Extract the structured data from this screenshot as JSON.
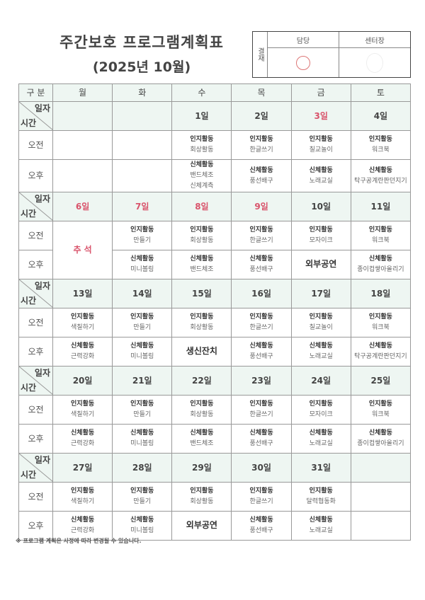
{
  "title": "주간보호 프로그램계획표",
  "subtitle": "(2025년 10월)",
  "approval": {
    "label": "결재",
    "col1": "담당",
    "col2": "센터장"
  },
  "header": {
    "first": "구 분",
    "days": [
      "월",
      "화",
      "수",
      "목",
      "금",
      "토"
    ]
  },
  "corner": {
    "top": "일자",
    "bottom": "시간"
  },
  "row_labels": {
    "am": "오전",
    "pm": "오후"
  },
  "colors": {
    "holiday": "#d9536b",
    "header_bg": "#eef6f2"
  },
  "weeks": [
    {
      "days": [
        {
          "date": "",
          "am": null,
          "pm": null
        },
        {
          "date": "",
          "am": null,
          "pm": null
        },
        {
          "date": "1일",
          "am": {
            "t": "인지활동",
            "s": [
              "회상활동"
            ]
          },
          "pm": {
            "t": "신체활동",
            "s": [
              "밴드체조",
              "신체계측"
            ]
          }
        },
        {
          "date": "2일",
          "am": {
            "t": "인지활동",
            "s": [
              "한글쓰기"
            ]
          },
          "pm": {
            "t": "신체활동",
            "s": [
              "풍선배구"
            ]
          }
        },
        {
          "date": "3일",
          "red": true,
          "am": {
            "t": "인지활동",
            "s": [
              "칠교놀이"
            ]
          },
          "pm": {
            "t": "신체활동",
            "s": [
              "노래교실"
            ]
          }
        },
        {
          "date": "4일",
          "am": {
            "t": "인지활동",
            "s": [
              "워크북"
            ]
          },
          "pm": {
            "t": "신체활동",
            "s": [
              "탁구공계란판던지기"
            ]
          }
        }
      ]
    },
    {
      "days": [
        {
          "date": "6일",
          "red": true,
          "merged": "추 석"
        },
        {
          "date": "7일",
          "red": true,
          "am": {
            "t": "인지활동",
            "s": [
              "만들기"
            ]
          },
          "pm": {
            "t": "신체활동",
            "s": [
              "미니볼링"
            ]
          }
        },
        {
          "date": "8일",
          "red": true,
          "am": {
            "t": "인지활동",
            "s": [
              "회상활동"
            ]
          },
          "pm": {
            "t": "신체활동",
            "s": [
              "밴드체조"
            ]
          }
        },
        {
          "date": "9일",
          "red": true,
          "am": {
            "t": "인지활동",
            "s": [
              "한글쓰기"
            ]
          },
          "pm": {
            "t": "신체활동",
            "s": [
              "풍선배구"
            ]
          }
        },
        {
          "date": "10일",
          "am": {
            "t": "인지활동",
            "s": [
              "모자이크"
            ]
          },
          "pm": {
            "big": "외부공연"
          }
        },
        {
          "date": "11일",
          "am": {
            "t": "인지활동",
            "s": [
              "워크북"
            ]
          },
          "pm": {
            "t": "신체활동",
            "s": [
              "종이컵쌓아올리기"
            ]
          }
        }
      ]
    },
    {
      "days": [
        {
          "date": "13일",
          "am": {
            "t": "인지활동",
            "s": [
              "색칠하기"
            ]
          },
          "pm": {
            "t": "신체활동",
            "s": [
              "근력강화"
            ]
          }
        },
        {
          "date": "14일",
          "am": {
            "t": "인지활동",
            "s": [
              "만들기"
            ]
          },
          "pm": {
            "t": "신체활동",
            "s": [
              "미니볼링"
            ]
          }
        },
        {
          "date": "15일",
          "am": {
            "t": "인지활동",
            "s": [
              "회상활동"
            ]
          },
          "pm": {
            "big": "생신잔치"
          }
        },
        {
          "date": "16일",
          "am": {
            "t": "인지활동",
            "s": [
              "한글쓰기"
            ]
          },
          "pm": {
            "t": "신체활동",
            "s": [
              "풍선배구"
            ]
          }
        },
        {
          "date": "17일",
          "am": {
            "t": "인지활동",
            "s": [
              "칠교놀이"
            ]
          },
          "pm": {
            "t": "신체활동",
            "s": [
              "노래교실"
            ]
          }
        },
        {
          "date": "18일",
          "am": {
            "t": "인지활동",
            "s": [
              "워크북"
            ]
          },
          "pm": {
            "t": "신체활동",
            "s": [
              "탁구공계란판던지기"
            ]
          }
        }
      ]
    },
    {
      "days": [
        {
          "date": "20일",
          "am": {
            "t": "인지활동",
            "s": [
              "색칠하기"
            ]
          },
          "pm": {
            "t": "신체활동",
            "s": [
              "근력강화"
            ]
          }
        },
        {
          "date": "21일",
          "am": {
            "t": "인지활동",
            "s": [
              "만들기"
            ]
          },
          "pm": {
            "t": "신체활동",
            "s": [
              "미니볼링"
            ]
          }
        },
        {
          "date": "22일",
          "am": {
            "t": "인지활동",
            "s": [
              "회상활동"
            ]
          },
          "pm": {
            "t": "신체활동",
            "s": [
              "밴드체조"
            ]
          }
        },
        {
          "date": "23일",
          "am": {
            "t": "인지활동",
            "s": [
              "한글쓰기"
            ]
          },
          "pm": {
            "t": "신체활동",
            "s": [
              "풍선배구"
            ]
          }
        },
        {
          "date": "24일",
          "am": {
            "t": "인지활동",
            "s": [
              "모자이크"
            ]
          },
          "pm": {
            "t": "신체활동",
            "s": [
              "노래교실"
            ]
          }
        },
        {
          "date": "25일",
          "am": {
            "t": "인지활동",
            "s": [
              "워크북"
            ]
          },
          "pm": {
            "t": "신체활동",
            "s": [
              "종이컵쌓아올리기"
            ]
          }
        }
      ]
    },
    {
      "days": [
        {
          "date": "27일",
          "am": {
            "t": "인지활동",
            "s": [
              "색칠하기"
            ]
          },
          "pm": {
            "t": "신체활동",
            "s": [
              "근력강화"
            ]
          }
        },
        {
          "date": "28일",
          "am": {
            "t": "인지활동",
            "s": [
              "만들기"
            ]
          },
          "pm": {
            "t": "신체활동",
            "s": [
              "미니볼링"
            ]
          }
        },
        {
          "date": "29일",
          "am": {
            "t": "인지활동",
            "s": [
              "회상활동"
            ]
          },
          "pm": {
            "big": "외부공연"
          }
        },
        {
          "date": "30일",
          "am": {
            "t": "인지활동",
            "s": [
              "한글쓰기"
            ]
          },
          "pm": {
            "t": "신체활동",
            "s": [
              "풍선배구"
            ]
          }
        },
        {
          "date": "31일",
          "am": {
            "t": "인지활동",
            "s": [
              "달력협동화"
            ]
          },
          "pm": {
            "t": "신체활동",
            "s": [
              "노래교실"
            ]
          }
        },
        {
          "date": "",
          "am": null,
          "pm": null
        }
      ]
    }
  ],
  "footnote": "※ 프로그램 계획은 사정에 따라 변경될 수 있습니다."
}
